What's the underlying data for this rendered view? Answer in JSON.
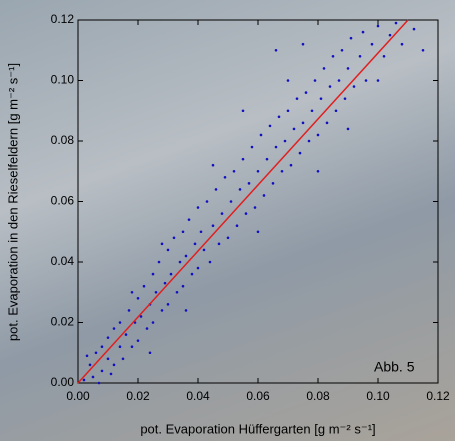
{
  "chart_data": {
    "type": "scatter",
    "x_label": "pot. Evaporation Hüffergarten [g m⁻² s⁻¹]",
    "y_label": "pot. Evaporation in den Rieselfeldern [g m⁻² s⁻¹]",
    "annotation": "Abb. 5",
    "xlim": [
      0,
      0.12
    ],
    "ylim": [
      0,
      0.12
    ],
    "xticks": [
      {
        "value": 0,
        "label": "0.00"
      },
      0.02,
      0.04,
      0.06,
      0.08,
      {
        "value": 0.1,
        "label": "0.10"
      },
      0.12
    ],
    "yticks": [
      {
        "value": 0,
        "label": "0.00"
      },
      0.02,
      0.04,
      0.06,
      0.08,
      {
        "value": 0.1,
        "label": "0.10"
      },
      0.12
    ],
    "series": [
      {
        "type": "scatter",
        "color": "#1010c0",
        "x": [
          0.002,
          0.004,
          0.005,
          0.006,
          0.008,
          0.008,
          0.01,
          0.01,
          0.012,
          0.012,
          0.014,
          0.014,
          0.015,
          0.016,
          0.017,
          0.018,
          0.019,
          0.02,
          0.02,
          0.021,
          0.022,
          0.023,
          0.024,
          0.025,
          0.025,
          0.026,
          0.027,
          0.028,
          0.029,
          0.03,
          0.03,
          0.031,
          0.032,
          0.033,
          0.034,
          0.035,
          0.035,
          0.036,
          0.037,
          0.038,
          0.039,
          0.04,
          0.04,
          0.041,
          0.042,
          0.043,
          0.044,
          0.045,
          0.046,
          0.047,
          0.048,
          0.049,
          0.05,
          0.051,
          0.052,
          0.053,
          0.054,
          0.055,
          0.056,
          0.057,
          0.058,
          0.059,
          0.06,
          0.061,
          0.062,
          0.063,
          0.064,
          0.065,
          0.066,
          0.067,
          0.068,
          0.069,
          0.07,
          0.071,
          0.072,
          0.073,
          0.074,
          0.075,
          0.076,
          0.077,
          0.078,
          0.079,
          0.08,
          0.081,
          0.082,
          0.083,
          0.084,
          0.085,
          0.086,
          0.087,
          0.088,
          0.089,
          0.09,
          0.091,
          0.092,
          0.094,
          0.095,
          0.096,
          0.098,
          0.1,
          0.102,
          0.104,
          0.106,
          0.108,
          0.112,
          0.115,
          0.003,
          0.007,
          0.011,
          0.024,
          0.018,
          0.028,
          0.036,
          0.045,
          0.06,
          0.055,
          0.07,
          0.08,
          0.09,
          0.1,
          0.066,
          0.075
        ],
        "values": [
          0.001,
          0.006,
          0.002,
          0.01,
          0.004,
          0.012,
          0.008,
          0.015,
          0.006,
          0.018,
          0.012,
          0.02,
          0.008,
          0.016,
          0.024,
          0.012,
          0.02,
          0.028,
          0.014,
          0.022,
          0.032,
          0.018,
          0.026,
          0.036,
          0.02,
          0.03,
          0.04,
          0.024,
          0.033,
          0.044,
          0.026,
          0.036,
          0.048,
          0.03,
          0.04,
          0.05,
          0.032,
          0.042,
          0.054,
          0.036,
          0.046,
          0.058,
          0.038,
          0.05,
          0.044,
          0.06,
          0.04,
          0.052,
          0.064,
          0.046,
          0.056,
          0.068,
          0.048,
          0.06,
          0.07,
          0.052,
          0.064,
          0.074,
          0.056,
          0.066,
          0.078,
          0.058,
          0.07,
          0.082,
          0.062,
          0.074,
          0.085,
          0.066,
          0.078,
          0.088,
          0.07,
          0.08,
          0.09,
          0.072,
          0.084,
          0.094,
          0.076,
          0.086,
          0.096,
          0.08,
          0.09,
          0.1,
          0.082,
          0.094,
          0.104,
          0.086,
          0.098,
          0.108,
          0.09,
          0.1,
          0.11,
          0.094,
          0.104,
          0.114,
          0.098,
          0.108,
          0.116,
          0.1,
          0.112,
          0.118,
          0.108,
          0.115,
          0.119,
          0.112,
          0.117,
          0.11,
          0.009,
          0.0,
          0.003,
          0.01,
          0.03,
          0.046,
          0.024,
          0.072,
          0.05,
          0.09,
          0.1,
          0.07,
          0.084,
          0.1,
          0.11,
          0.112
        ]
      },
      {
        "type": "line",
        "color": "#e02020",
        "x": [
          0,
          0.11
        ],
        "values": [
          0,
          0.12
        ]
      }
    ]
  }
}
